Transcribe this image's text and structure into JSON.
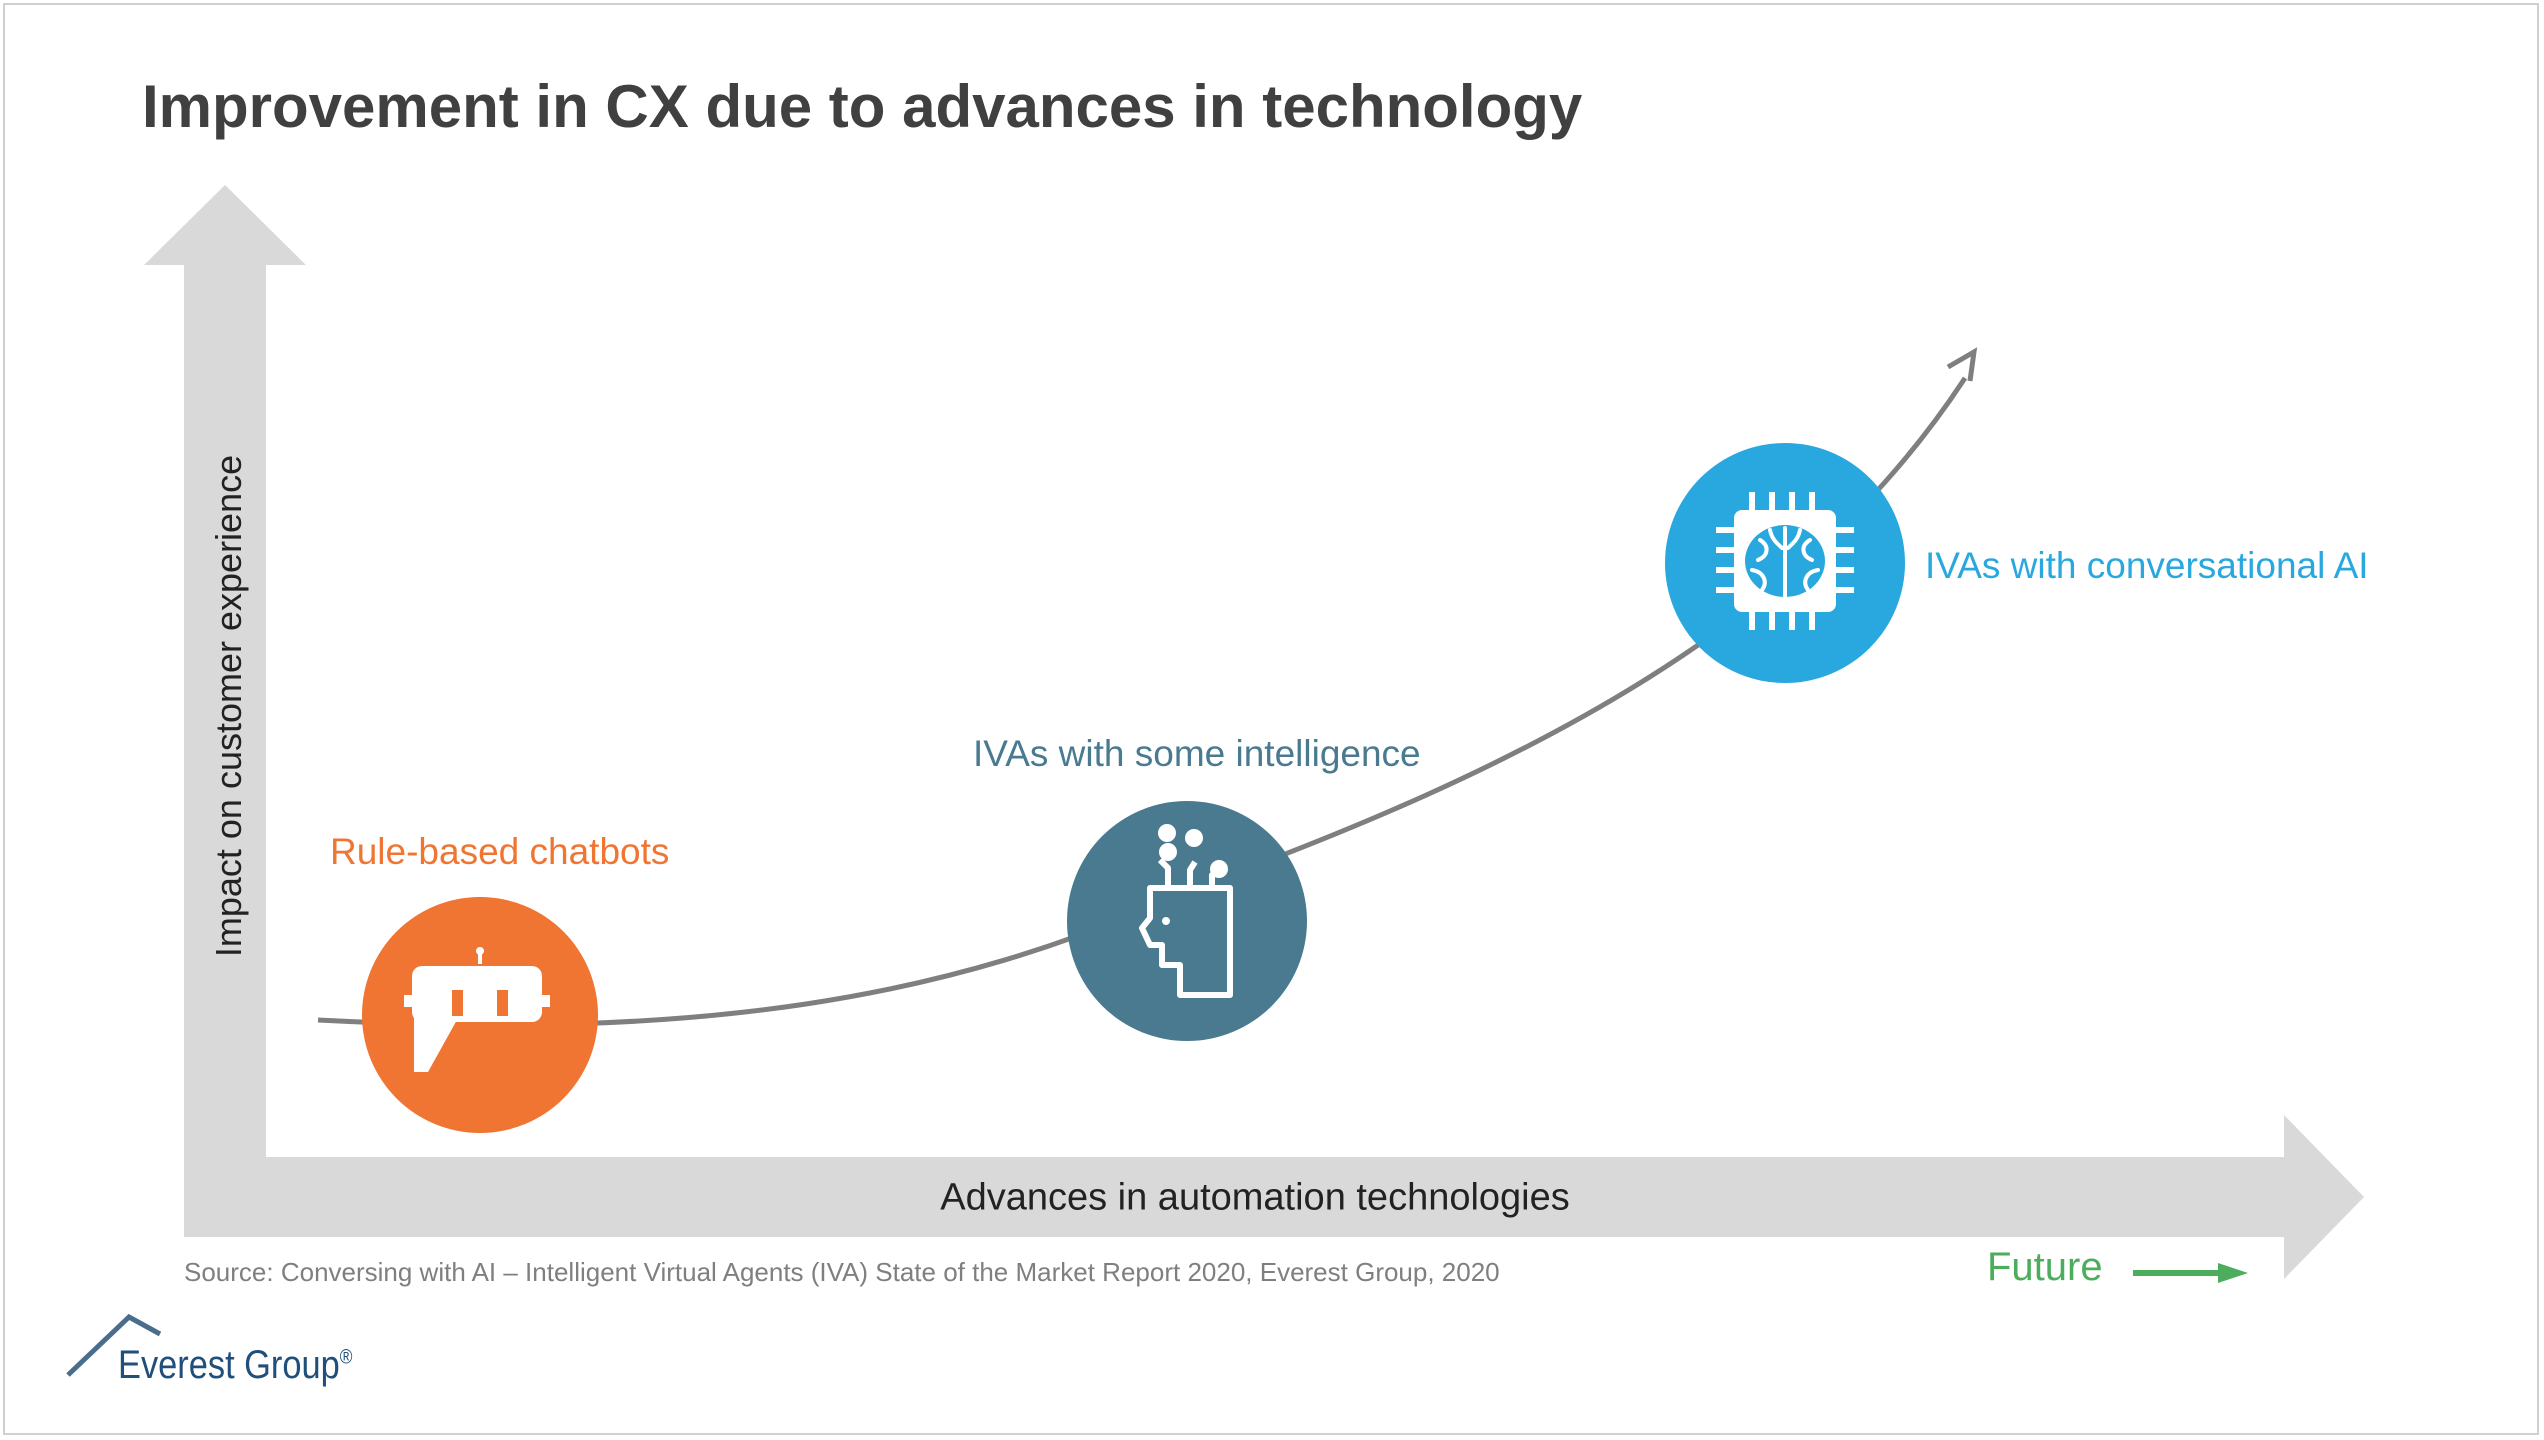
{
  "title": "Improvement in CX due to advances in technology",
  "axes": {
    "y_label": "Impact on customer experience",
    "x_label": "Advances in automation technologies"
  },
  "stages": [
    {
      "label": "Rule-based  chatbots",
      "icon": "chatbot-icon",
      "color": "#f07532"
    },
    {
      "label": "IVAs with some intelligence",
      "icon": "ai-head-icon",
      "color": "#4a7a90"
    },
    {
      "label": "IVAs with conversational AI",
      "icon": "brain-chip-icon",
      "color": "#29a8e0"
    }
  ],
  "source": "Source: Conversing with AI – Intelligent Virtual Agents (IVA) State of the Market Report 2020, Everest Group, 2020",
  "future": {
    "label": "Future",
    "color": "#4cae5c"
  },
  "brand": {
    "name": "Everest Group",
    "mark": "®"
  },
  "colors": {
    "axis": "#d9d9d9",
    "curve": "#7f7f7f"
  }
}
